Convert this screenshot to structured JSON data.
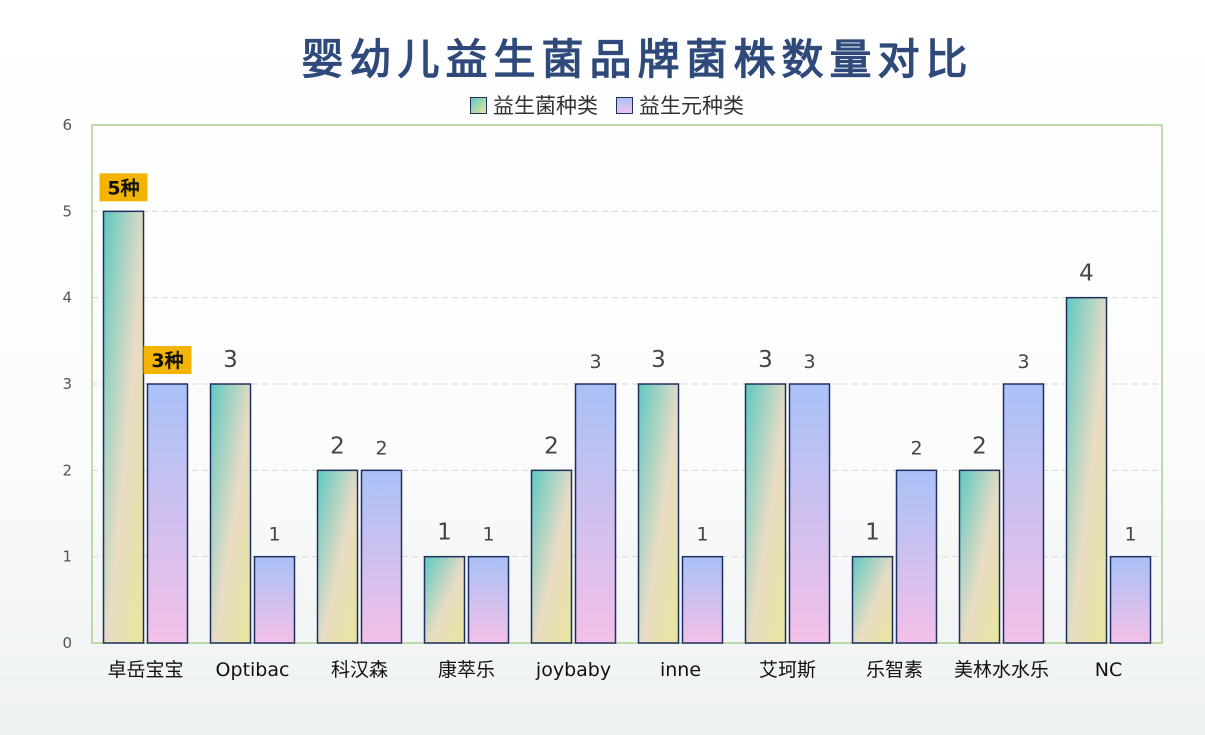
{
  "chart_data": {
    "type": "bar",
    "title": "婴幼儿益生菌品牌菌株数量对比",
    "categories": [
      "卓岳宝宝",
      "Optibac",
      "科汉森",
      "康萃乐",
      "joybaby",
      "inne",
      "艾珂斯",
      "乐智素",
      "美林水水乐",
      "NC"
    ],
    "series": [
      {
        "name": "益生菌种类",
        "values": [
          5,
          3,
          2,
          1,
          2,
          3,
          3,
          1,
          2,
          4
        ]
      },
      {
        "name": "益生元种类",
        "values": [
          3,
          1,
          2,
          1,
          3,
          1,
          3,
          2,
          3,
          1
        ]
      }
    ],
    "data_labels": [
      [
        "5种",
        "3",
        "2",
        "1",
        "2",
        "3",
        "3",
        "1",
        "2",
        "4"
      ],
      [
        "3种",
        "1",
        "2",
        "1",
        "3",
        "1",
        "3",
        "2",
        "3",
        "1"
      ]
    ],
    "ylim": [
      0,
      6
    ],
    "yticks": [
      0,
      1,
      2,
      3,
      4,
      5,
      6
    ],
    "grid": true,
    "legend_position": "top-center",
    "colors": {
      "series_a_top": "#5fc8c2",
      "series_a_bottom": "#e7e69a",
      "series_b_top": "#a9c1f7",
      "series_b_bottom": "#f3c0e8",
      "bar_border": "#1f2f5f",
      "plot_border": "#a9d18e",
      "highlight_label_bg": "#f2b400",
      "title": "#2f4a7a"
    }
  }
}
